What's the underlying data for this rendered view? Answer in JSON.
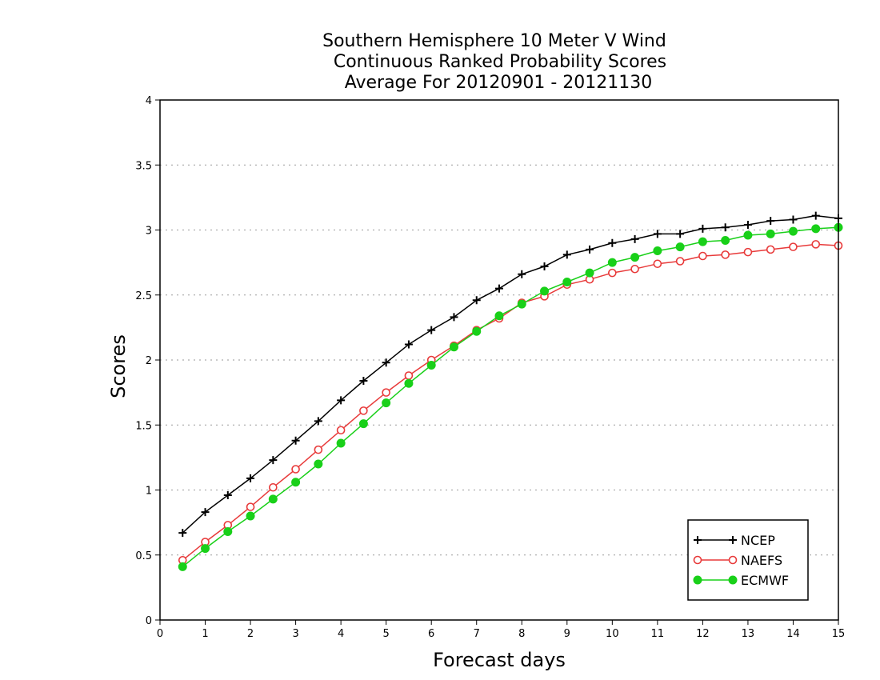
{
  "chart_data": {
    "type": "line",
    "title": [
      "Southern Hemisphere 10 Meter V Wind",
      "Continuous Ranked Probability Scores",
      "Average For 20120901 - 20121130"
    ],
    "xlabel": "Forecast days",
    "ylabel": "Scores",
    "xlim": [
      0,
      15
    ],
    "ylim": [
      0,
      4
    ],
    "xticks": [
      "0",
      "1",
      "2",
      "3",
      "4",
      "5",
      "6",
      "7",
      "8",
      "9",
      "10",
      "11",
      "12",
      "13",
      "14",
      "15"
    ],
    "yticks": [
      "0",
      "0.5",
      "1",
      "1.5",
      "2",
      "2.5",
      "3",
      "3.5",
      "4"
    ],
    "grid": "horizontal dotted",
    "legend_position": "bottom-right",
    "x": [
      0.5,
      1,
      1.5,
      2,
      2.5,
      3,
      3.5,
      4,
      4.5,
      5,
      5.5,
      6,
      6.5,
      7,
      7.5,
      8,
      8.5,
      9,
      9.5,
      10,
      10.5,
      11,
      11.5,
      12,
      12.5,
      13,
      13.5,
      14,
      14.5,
      15
    ],
    "series": [
      {
        "name": "NCEP",
        "color": "#000000",
        "marker": "plus",
        "values": [
          0.67,
          0.83,
          0.96,
          1.09,
          1.23,
          1.38,
          1.53,
          1.69,
          1.84,
          1.98,
          2.12,
          2.23,
          2.33,
          2.46,
          2.55,
          2.66,
          2.72,
          2.81,
          2.85,
          2.9,
          2.93,
          2.97,
          2.97,
          3.01,
          3.02,
          3.04,
          3.07,
          3.08,
          3.11,
          3.09
        ]
      },
      {
        "name": "NAEFS",
        "color": "#e83a3a",
        "marker": "open-circle",
        "values": [
          0.46,
          0.6,
          0.73,
          0.87,
          1.02,
          1.16,
          1.31,
          1.46,
          1.61,
          1.75,
          1.88,
          2.0,
          2.11,
          2.23,
          2.32,
          2.44,
          2.49,
          2.58,
          2.62,
          2.67,
          2.7,
          2.74,
          2.76,
          2.8,
          2.81,
          2.83,
          2.85,
          2.87,
          2.89,
          2.88
        ]
      },
      {
        "name": "ECMWF",
        "color": "#19d019",
        "marker": "filled-circle",
        "values": [
          0.41,
          0.55,
          0.68,
          0.8,
          0.93,
          1.06,
          1.2,
          1.36,
          1.51,
          1.67,
          1.82,
          1.96,
          2.1,
          2.22,
          2.34,
          2.43,
          2.53,
          2.6,
          2.67,
          2.75,
          2.79,
          2.84,
          2.87,
          2.91,
          2.92,
          2.96,
          2.97,
          2.99,
          3.01,
          3.02
        ]
      }
    ]
  }
}
